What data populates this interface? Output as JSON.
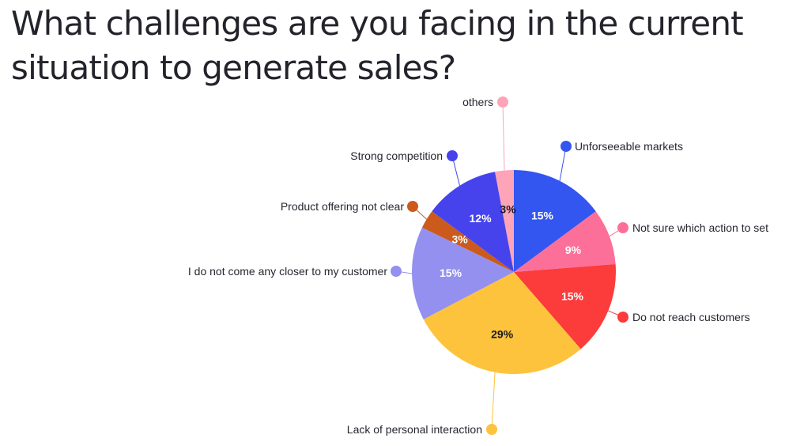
{
  "title": "What challenges are you facing in the current situation to generate sales?",
  "chart_data": {
    "type": "pie",
    "title": "What challenges are you facing in the current situation to generate sales?",
    "slices": [
      {
        "label": "Unforseeable markets",
        "value": 15,
        "display": "15%",
        "color": "#3355f0"
      },
      {
        "label": "Not sure which action to set",
        "value": 9,
        "display": "9%",
        "color": "#fc6f99"
      },
      {
        "label": "Do not reach customers",
        "value": 15,
        "display": "15%",
        "color": "#fc3b3b"
      },
      {
        "label": "Lack of personal interaction",
        "value": 29,
        "display": "29%",
        "color": "#fdc33c"
      },
      {
        "label": "I do not come any closer to my customer",
        "value": 15,
        "display": "15%",
        "color": "#9490f0"
      },
      {
        "label": "Product offering not clear",
        "value": 3,
        "display": "3%",
        "color": "#cc5a1c"
      },
      {
        "label": "Strong competition",
        "value": 12,
        "display": "12%",
        "color": "#4643ed"
      },
      {
        "label": "others",
        "value": 3,
        "display": "3%",
        "color": "#fda4b8"
      }
    ]
  }
}
